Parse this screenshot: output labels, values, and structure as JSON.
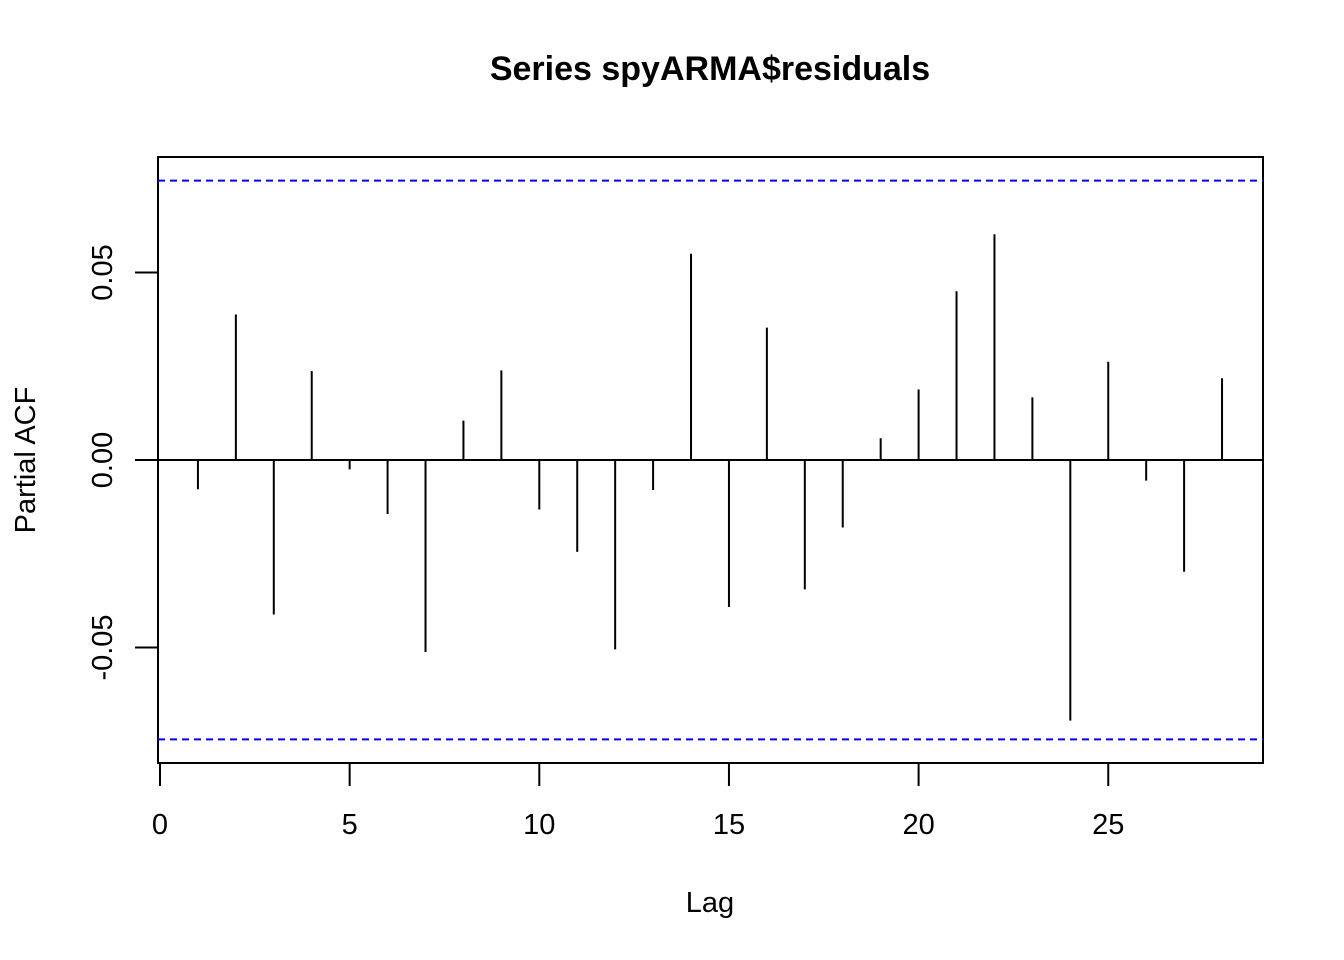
{
  "chart_data": {
    "type": "bar",
    "title": "Series  spyARMA$residuals",
    "xlabel": "Lag",
    "ylabel": "Partial ACF",
    "xlim": [
      0,
      29
    ],
    "ylim": [
      -0.08,
      0.08
    ],
    "x_ticks": [
      0,
      5,
      10,
      15,
      20,
      25
    ],
    "x_tick_labels": [
      "0",
      "5",
      "10",
      "15",
      "20",
      "25"
    ],
    "y_ticks": [
      -0.05,
      0,
      0.05
    ],
    "y_tick_labels": [
      "-0.05",
      "0.00",
      "0.05"
    ],
    "confidence_limit": 0.0745,
    "confidence_color": "#0000ff",
    "line_color": "#000000",
    "grid": false,
    "series": [
      {
        "x": [
          1,
          2,
          3,
          4,
          5,
          6,
          7,
          8,
          9,
          10,
          11,
          12,
          13,
          14,
          15,
          16,
          17,
          18,
          19,
          20,
          21,
          22,
          23,
          24,
          25,
          26,
          27,
          28
        ],
        "values": [
          -0.0078,
          0.0388,
          -0.0412,
          0.0237,
          -0.0025,
          -0.0144,
          -0.0512,
          0.0105,
          0.0239,
          -0.0132,
          -0.0245,
          -0.0505,
          -0.008,
          0.055,
          -0.0392,
          0.0353,
          -0.0345,
          -0.018,
          0.0058,
          0.0188,
          0.045,
          0.0602,
          0.0167,
          -0.0695,
          0.0262,
          -0.0055,
          -0.0298,
          0.0218
        ]
      }
    ]
  }
}
